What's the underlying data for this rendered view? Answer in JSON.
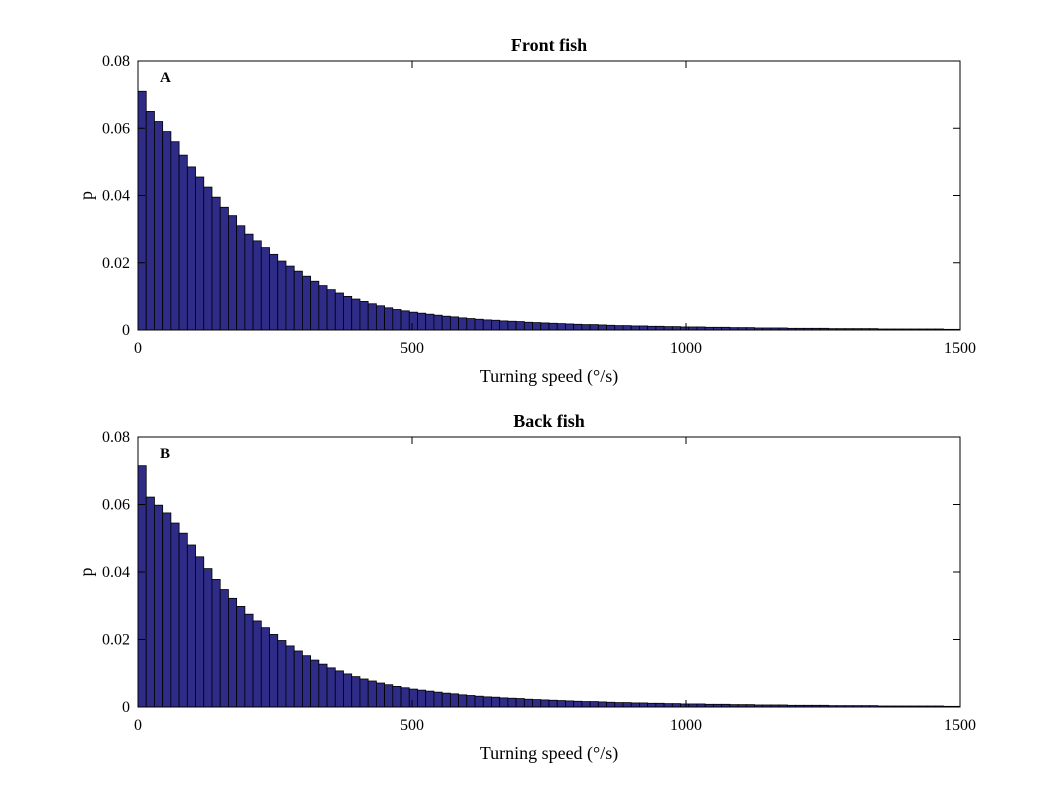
{
  "bar_color": "#2e2c87",
  "bar_edge_color": "#000000",
  "chart_data": [
    {
      "type": "bar",
      "panel_label": "A",
      "title": "Front fish",
      "xlabel": "Turning speed (°/s)",
      "ylabel": "p",
      "xlim": [
        0,
        1500
      ],
      "ylim": [
        0,
        0.08
      ],
      "xticks": [
        0,
        500,
        1000,
        1500
      ],
      "xtick_labels": [
        "0",
        "500",
        "1000",
        "1500"
      ],
      "yticks": [
        0,
        0.02,
        0.04,
        0.06,
        0.08
      ],
      "ytick_labels": [
        "0",
        "0.02",
        "0.04",
        "0.06",
        "0.08"
      ],
      "grid": false,
      "bin_width": 15,
      "values": [
        0.071,
        0.065,
        0.062,
        0.059,
        0.056,
        0.052,
        0.0485,
        0.0455,
        0.0425,
        0.0395,
        0.0365,
        0.034,
        0.031,
        0.0285,
        0.0265,
        0.0245,
        0.0225,
        0.0205,
        0.019,
        0.0175,
        0.016,
        0.0145,
        0.0132,
        0.012,
        0.011,
        0.01,
        0.0092,
        0.0085,
        0.0078,
        0.0072,
        0.0066,
        0.0061,
        0.0057,
        0.0053,
        0.005,
        0.0047,
        0.0044,
        0.0041,
        0.0039,
        0.0036,
        0.0034,
        0.0032,
        0.003,
        0.0029,
        0.0027,
        0.0026,
        0.0025,
        0.0023,
        0.0022,
        0.0021,
        0.002,
        0.0019,
        0.0018,
        0.0017,
        0.0016,
        0.0016,
        0.0015,
        0.0014,
        0.0013,
        0.0013,
        0.0012,
        0.0012,
        0.0011,
        0.0011,
        0.001,
        0.001,
        0.0009,
        0.0009,
        0.0009,
        0.0008,
        0.0008,
        0.0008,
        0.0007,
        0.0007,
        0.0007,
        0.0006,
        0.0006,
        0.0006,
        0.0006,
        0.0005,
        0.0005,
        0.0005,
        0.0005,
        0.0005,
        0.0004,
        0.0004,
        0.0004,
        0.0004,
        0.0004,
        0.0004,
        0.0003,
        0.0003,
        0.0003,
        0.0003,
        0.0003,
        0.0003,
        0.0003,
        0.0003,
        0.0002,
        0.0002
      ]
    },
    {
      "type": "bar",
      "panel_label": "B",
      "title": "Back fish",
      "xlabel": "Turning speed (°/s)",
      "ylabel": "p",
      "xlim": [
        0,
        1500
      ],
      "ylim": [
        0,
        0.08
      ],
      "xticks": [
        0,
        500,
        1000,
        1500
      ],
      "xtick_labels": [
        "0",
        "500",
        "1000",
        "1500"
      ],
      "yticks": [
        0,
        0.02,
        0.04,
        0.06,
        0.08
      ],
      "ytick_labels": [
        "0",
        "0.02",
        "0.04",
        "0.06",
        "0.08"
      ],
      "grid": false,
      "bin_width": 15,
      "values": [
        0.0715,
        0.0622,
        0.0598,
        0.0575,
        0.0545,
        0.0515,
        0.048,
        0.0445,
        0.041,
        0.0378,
        0.0348,
        0.0322,
        0.0298,
        0.0275,
        0.0255,
        0.0235,
        0.0215,
        0.0197,
        0.0181,
        0.0166,
        0.0152,
        0.0139,
        0.0127,
        0.0116,
        0.0107,
        0.0098,
        0.009,
        0.0083,
        0.0077,
        0.0071,
        0.0066,
        0.0061,
        0.0057,
        0.0053,
        0.005,
        0.0047,
        0.0044,
        0.0041,
        0.0039,
        0.0036,
        0.0034,
        0.0032,
        0.003,
        0.0029,
        0.0027,
        0.0026,
        0.0025,
        0.0023,
        0.0022,
        0.0021,
        0.002,
        0.0019,
        0.0018,
        0.0017,
        0.0016,
        0.0016,
        0.0015,
        0.0014,
        0.0013,
        0.0013,
        0.0012,
        0.0012,
        0.0011,
        0.0011,
        0.001,
        0.001,
        0.0009,
        0.0009,
        0.0009,
        0.0008,
        0.0008,
        0.0008,
        0.0007,
        0.0007,
        0.0007,
        0.0006,
        0.0006,
        0.0006,
        0.0006,
        0.0005,
        0.0005,
        0.0005,
        0.0005,
        0.0005,
        0.0004,
        0.0004,
        0.0004,
        0.0004,
        0.0004,
        0.0004,
        0.0003,
        0.0003,
        0.0003,
        0.0003,
        0.0003,
        0.0003,
        0.0003,
        0.0003,
        0.0002,
        0.0002
      ]
    }
  ]
}
